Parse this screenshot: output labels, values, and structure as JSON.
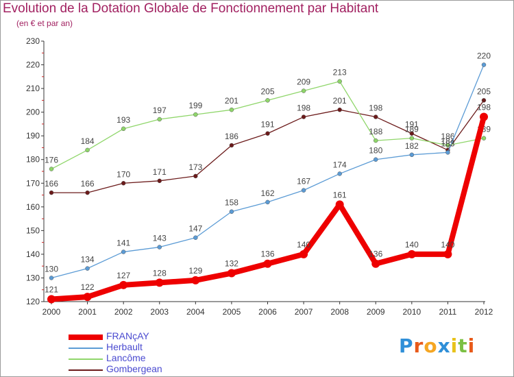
{
  "title": "Evolution de la Dotation Globale de Fonctionnement par Habitant",
  "subtitle": "(en € et par an)",
  "brand": "Proxiti",
  "chart_data": {
    "type": "line",
    "x": [
      "2000",
      "2001",
      "2002",
      "2003",
      "2004",
      "2005",
      "2006",
      "2007",
      "2008",
      "2009",
      "2010",
      "2011",
      "2012"
    ],
    "ylim": [
      120,
      230
    ],
    "yticks": [
      120,
      130,
      140,
      150,
      160,
      170,
      180,
      190,
      200,
      210,
      220,
      230
    ],
    "grid": false,
    "legend_position": "bottom-left",
    "series": [
      {
        "name": "Gombergean",
        "color": "#6b1a1a",
        "values": [
          166,
          166,
          170,
          171,
          173,
          186,
          191,
          198,
          201,
          198,
          191,
          184,
          205
        ]
      },
      {
        "name": "Lancôme",
        "color": "#8fd66a",
        "values": [
          176,
          184,
          193,
          197,
          199,
          201,
          205,
          209,
          213,
          188,
          189,
          186,
          189
        ]
      },
      {
        "name": "Herbault",
        "color": "#5b9bd5",
        "values": [
          130,
          134,
          141,
          143,
          147,
          158,
          162,
          167,
          174,
          180,
          182,
          183,
          220
        ]
      },
      {
        "name": "FRANçAY",
        "color": "#ee0000",
        "values": [
          121,
          122,
          127,
          128,
          129,
          132,
          136,
          140,
          161,
          136,
          140,
          140,
          198
        ]
      }
    ]
  }
}
